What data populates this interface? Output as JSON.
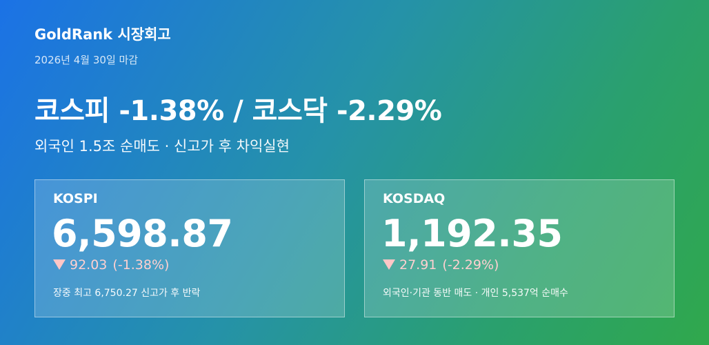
{
  "header": {
    "brand": "GoldRank 시장회고",
    "date": "2026년 4월 30일 마감"
  },
  "headline": "코스피 -1.38% / 코스닥 -2.29%",
  "subheadline": "외국인 1.5조 순매도 · 신고가 후 차익실현",
  "cards": [
    {
      "name": "KOSPI",
      "value": "6,598.87",
      "change": "92.03",
      "percent": "(-1.38%)",
      "note": "장중 최고 6,750.27 신고가 후 반락"
    },
    {
      "name": "KOSDAQ",
      "value": "1,192.35",
      "change": "27.91",
      "percent": "(-2.29%)",
      "note": "외국인·기관 동반 매도 · 개인 5,537억 순매수"
    }
  ]
}
